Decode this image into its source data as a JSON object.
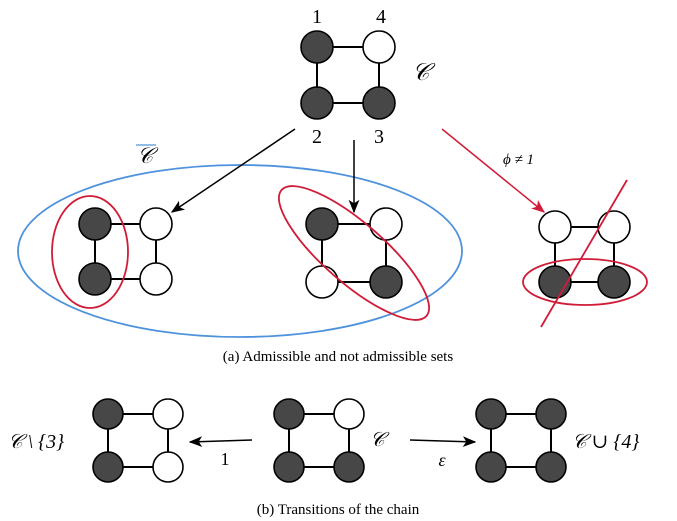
{
  "colors": {
    "filled_node": "#474747",
    "empty_node": "#ffffff",
    "blue_set": "#4f92dc",
    "red_set": "#d01c38",
    "edge": "#000000"
  },
  "top": {
    "set_label": "𝒞",
    "node_labels": [
      "1",
      "4",
      "2",
      "3"
    ]
  },
  "admissible_set_label": "𝒞",
  "phi_label": "ϕ ≠ 1",
  "caption_a": "(a) Admissible and not admissible sets",
  "caption_b": "(b) Transitions of the chain",
  "transitions": {
    "left_label": "𝒞 \\ {3}",
    "center_label": "𝒞",
    "right_label": "𝒞 ∪ {4}",
    "left_rate": "1",
    "right_rate": "ε"
  },
  "graphs": {
    "top": {
      "state": [
        "filled",
        "empty",
        "filled",
        "filled"
      ]
    },
    "a_left": {
      "state": [
        "filled",
        "empty",
        "filled",
        "empty"
      ]
    },
    "a_middle": {
      "state": [
        "filled",
        "empty",
        "empty",
        "filled"
      ]
    },
    "a_right": {
      "state": [
        "empty",
        "empty",
        "filled",
        "filled"
      ]
    },
    "b_left": {
      "state": [
        "filled",
        "empty",
        "filled",
        "empty"
      ]
    },
    "b_center": {
      "state": [
        "filled",
        "empty",
        "filled",
        "filled"
      ]
    },
    "b_right": {
      "state": [
        "filled",
        "filled",
        "filled",
        "filled"
      ]
    }
  }
}
